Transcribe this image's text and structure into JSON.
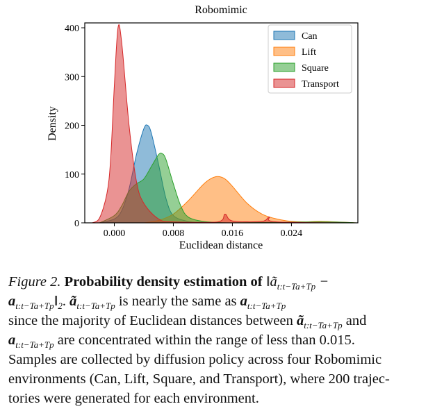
{
  "chart_data": {
    "type": "area",
    "title": "Robomimic",
    "xlabel": "Euclidean distance",
    "ylabel": "Density",
    "xlim": [
      -0.004,
      0.033
    ],
    "ylim": [
      0,
      410
    ],
    "x_ticks": [
      0.0,
      0.008,
      0.016,
      0.024
    ],
    "x_tick_labels": [
      "0.000",
      "0.008",
      "0.016",
      "0.024"
    ],
    "y_ticks": [
      0,
      100,
      200,
      300,
      400
    ],
    "y_tick_labels": [
      "0",
      "100",
      "200",
      "300",
      "400"
    ],
    "legend_position": "top-right",
    "grid": false,
    "series": [
      {
        "name": "Can",
        "color": "#1f77b4",
        "x": [
          -0.002,
          0.0,
          0.001,
          0.002,
          0.003,
          0.004,
          0.0045,
          0.005,
          0.006,
          0.007,
          0.008,
          0.01,
          0.012,
          0.016,
          0.02,
          0.024,
          0.033
        ],
        "y": [
          0,
          8,
          25,
          70,
          140,
          193,
          200,
          185,
          120,
          50,
          15,
          3,
          1,
          0,
          0,
          0,
          0
        ]
      },
      {
        "name": "Lift",
        "color": "#ff7f0e",
        "x": [
          0.004,
          0.006,
          0.008,
          0.01,
          0.012,
          0.013,
          0.014,
          0.015,
          0.016,
          0.018,
          0.02,
          0.022,
          0.024,
          0.026,
          0.028,
          0.033
        ],
        "y": [
          0,
          5,
          18,
          45,
          78,
          90,
          95,
          90,
          75,
          40,
          18,
          8,
          3,
          2,
          3,
          0
        ]
      },
      {
        "name": "Square",
        "color": "#2ca02c",
        "x": [
          -0.002,
          0.0,
          0.001,
          0.002,
          0.003,
          0.004,
          0.005,
          0.006,
          0.0065,
          0.007,
          0.008,
          0.009,
          0.01,
          0.012,
          0.014,
          0.016,
          0.028,
          0.033
        ],
        "y": [
          0,
          15,
          35,
          65,
          80,
          90,
          115,
          140,
          142,
          130,
          80,
          35,
          12,
          3,
          1,
          0,
          2,
          0
        ]
      },
      {
        "name": "Transport",
        "color": "#d62728",
        "x": [
          -0.003,
          -0.002,
          -0.001,
          -0.0005,
          0.0,
          0.0005,
          0.001,
          0.002,
          0.003,
          0.004,
          0.006,
          0.008,
          0.014,
          0.015,
          0.016,
          0.02,
          0.021,
          0.022,
          0.033
        ],
        "y": [
          0,
          10,
          60,
          130,
          280,
          400,
          370,
          200,
          85,
          40,
          8,
          2,
          2,
          18,
          4,
          3,
          12,
          2,
          0
        ]
      }
    ]
  },
  "caption": {
    "label": "Figure 2.",
    "bold_lead": "Probability density estimation of",
    "lines": [
      {
        "parts": [
          {
            "k": "lbl",
            "t": "Figure 2."
          },
          {
            "k": "bold",
            "t": " Probability density estimation of "
          },
          {
            "k": "math",
            "t": "‖ã"
          },
          {
            "k": "sub",
            "t": "t:t−Ta+Tp"
          },
          {
            "k": "math",
            "t": " −"
          }
        ]
      },
      {
        "parts": [
          {
            "k": "bmath",
            "t": "a"
          },
          {
            "k": "sub",
            "t": "t:t−Ta+Tp"
          },
          {
            "k": "math",
            "t": "‖"
          },
          {
            "k": "sub",
            "t": "2"
          },
          {
            "k": "plain",
            "t": ". "
          },
          {
            "k": "bmath",
            "t": "ã"
          },
          {
            "k": "sub",
            "t": "t:t−Ta+Tp"
          },
          {
            "k": "plain",
            "t": " is nearly the same as "
          },
          {
            "k": "bmath",
            "t": "a"
          },
          {
            "k": "sub",
            "t": "t:t−Ta+Tp"
          }
        ]
      },
      {
        "parts": [
          {
            "k": "plain",
            "t": "since the majority of Euclidean distances between "
          },
          {
            "k": "bmath",
            "t": "ã"
          },
          {
            "k": "sub",
            "t": "t:t−Ta+Tp"
          },
          {
            "k": "plain",
            "t": " and"
          }
        ]
      },
      {
        "parts": [
          {
            "k": "bmath",
            "t": "a"
          },
          {
            "k": "sub",
            "t": "t:t−Ta+Tp"
          },
          {
            "k": "plain",
            "t": " are concentrated within the range of less than 0.015."
          }
        ]
      },
      {
        "parts": [
          {
            "k": "plain",
            "t": "Samples are collected by diffusion policy across four Robomimic"
          }
        ]
      },
      {
        "parts": [
          {
            "k": "plain",
            "t": "environments (Can, Lift, Square, and Transport), where 200 trajec-"
          }
        ]
      },
      {
        "parts": [
          {
            "k": "plain",
            "t": "tories were generated for each environment."
          }
        ]
      }
    ]
  }
}
